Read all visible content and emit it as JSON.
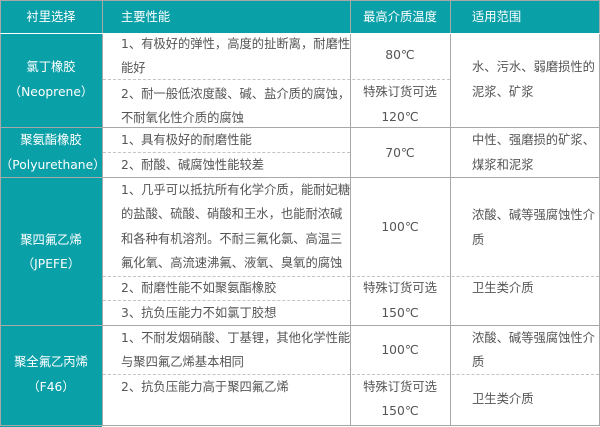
{
  "headers": [
    "衬里选择",
    "主要性能",
    "最高介质温度",
    "适用范围"
  ],
  "colors": {
    "accent": "#0aa0a8",
    "text": "#555555",
    "border": "#a8a8a8"
  },
  "rows": [
    {
      "lining": [
        "氯丁橡胶",
        "（Neoprene）"
      ],
      "props": [
        [
          "1、有极好的弹性，高度的扯断离，耐磨性",
          "能好"
        ],
        [
          "2、耐一般低浓度酸、碱、盐介质的腐蚀，",
          "不耐氧化性介质的腐蚀"
        ]
      ],
      "temp": [
        "80℃",
        "特殊订货可选",
        "120℃"
      ],
      "usage": [
        "水、污水、弱磨损性的",
        "泥浆、矿浆"
      ]
    },
    {
      "lining": [
        "聚氨酯橡胶",
        "（Polyurethane）"
      ],
      "props": [
        [
          "1、具有极好的耐磨性能"
        ],
        [
          "2、耐酸、碱腐蚀性能较差"
        ]
      ],
      "temp": [
        "70℃"
      ],
      "usage": [
        "中性、强磨损的矿浆、",
        "煤浆和泥浆"
      ]
    },
    {
      "lining": [
        "聚四氟乙烯",
        "（JPEFE）"
      ],
      "props": [
        [
          "1、几乎可以抵抗所有化学介质，能耐妃糖",
          "的盐酸、硫酸、硝酸和王水，也能耐浓碱",
          "和各种有机溶剂。不耐三氟化氯、高温三",
          "氟化氧、高流速沸氟、液氧、臭氧的腐蚀"
        ],
        [
          "2、耐磨性能不如聚氨酯橡胶"
        ],
        [
          "3、抗负压能力不如氯丁胶想"
        ]
      ],
      "temp": [
        "100℃",
        "特殊订货可选",
        "150℃"
      ],
      "usage": [
        "浓酸、碱等强腐蚀性介",
        "质",
        "卫生类介质"
      ]
    },
    {
      "lining": [
        "聚全氟乙丙烯",
        "（F46）"
      ],
      "props": [
        [
          "1、不耐发烟硝酸、丁基锂，其他化学性能",
          "与聚四氟乙烯基本相同"
        ],
        [
          "2、抗负压能力高于聚四氟乙烯"
        ]
      ],
      "temp": [
        "100℃",
        "特殊订货可选",
        "150℃"
      ],
      "usage": [
        "浓酸、碱等强腐蚀性介",
        "质",
        "卫生类介质"
      ]
    }
  ]
}
